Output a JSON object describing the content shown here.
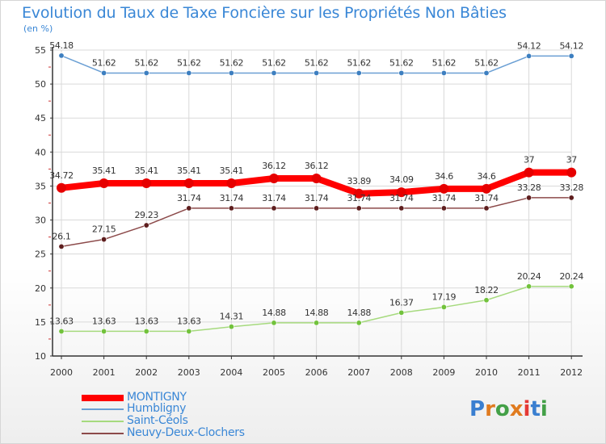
{
  "title": "Evolution du Taux de Taxe Foncière sur les Propriétés Non Bâties",
  "unit": "(en %)",
  "logo": {
    "text": "Proxiti",
    "letter_colors": [
      "#3a7fd0",
      "#e07b1f",
      "#43a047",
      "#e07b1f",
      "#e53935",
      "#3a7fd0",
      "#43a047"
    ]
  },
  "colors": {
    "axis": "#333333",
    "grid": "#d9d9d9",
    "tick_text": "#333333",
    "value_text": "#333333",
    "title": "#3a87d6"
  },
  "chart_data": {
    "type": "line",
    "title": "Evolution du Taux de Taxe Foncière sur les Propriétés Non Bâties",
    "ylabel": "(en %)",
    "xlabel": "",
    "ylim": [
      10,
      55
    ],
    "yticks": [
      10,
      15,
      20,
      25,
      30,
      35,
      40,
      45,
      50,
      55
    ],
    "grid": true,
    "legend_position": "bottom-left",
    "categories": [
      "2000",
      "2001",
      "2002",
      "2003",
      "2004",
      "2005",
      "2006",
      "2007",
      "2008",
      "2009",
      "2010",
      "2011",
      "2012"
    ],
    "series": [
      {
        "name": "Humbligny",
        "color": "#6a9fd4",
        "marker": "#3d7fc0",
        "width": 1.5,
        "values": [
          54.18,
          51.62,
          51.62,
          51.62,
          51.62,
          51.62,
          51.62,
          51.62,
          51.62,
          51.62,
          51.62,
          54.12,
          54.12
        ],
        "labels": [
          "54.18",
          "51.62",
          "51.62",
          "51.62",
          "51.62",
          "51.62",
          "51.62",
          "51.62",
          "51.62",
          "51.62",
          "51.62",
          "54.12",
          "54.12"
        ]
      },
      {
        "name": "Saint-Céols",
        "color": "#a6da7e",
        "marker": "#72c23c",
        "width": 1.5,
        "values": [
          13.63,
          13.63,
          13.63,
          13.63,
          14.31,
          14.88,
          14.88,
          14.88,
          16.37,
          17.19,
          18.22,
          20.24,
          20.24
        ],
        "labels": [
          "13.63",
          "13.63",
          "13.63",
          "13.63",
          "14.31",
          "14.88",
          "14.88",
          "14.88",
          "16.37",
          "17.19",
          "18.22",
          "20.24",
          "20.24"
        ]
      },
      {
        "name": "Neuvy-Deux-Clochers",
        "color": "#8c4a4a",
        "marker": "#5e1e1e",
        "width": 1.5,
        "values": [
          26.1,
          27.15,
          29.23,
          31.74,
          31.74,
          31.74,
          31.74,
          31.74,
          31.74,
          31.74,
          31.74,
          33.28,
          33.28
        ],
        "labels": [
          "26.1",
          "27.15",
          "29.23",
          "31.74",
          "31.74",
          "31.74",
          "31.74",
          "31.74",
          "31.74",
          "31.74",
          "31.74",
          "33.28",
          "33.28"
        ]
      },
      {
        "name": "MONTIGNY",
        "color": "#ff0000",
        "marker": "#e60000",
        "width": 8,
        "values": [
          34.72,
          35.41,
          35.41,
          35.41,
          35.41,
          36.12,
          36.12,
          33.89,
          34.09,
          34.6,
          34.6,
          37,
          37
        ],
        "labels": [
          "34.72",
          "35.41",
          "35.41",
          "35.41",
          "35.41",
          "36.12",
          "36.12",
          "33.89",
          "34.09",
          "34.6",
          "34.6",
          "37",
          "37"
        ]
      }
    ],
    "legend_order": [
      "MONTIGNY",
      "Humbligny",
      "Saint-Céols",
      "Neuvy-Deux-Clochers"
    ]
  }
}
